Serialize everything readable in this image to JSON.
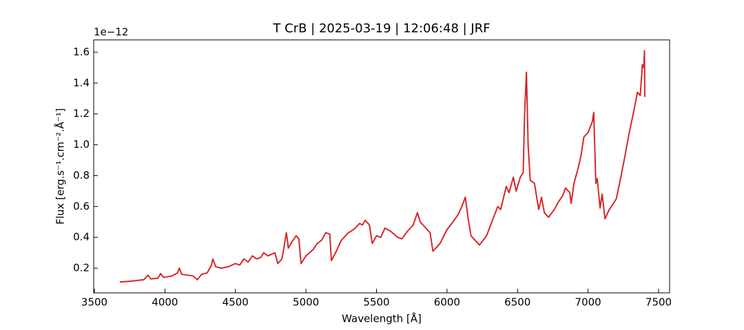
{
  "chart_data": {
    "type": "line",
    "title": "T CrB | 2025-03-19 | 12:06:48 | JRF",
    "x_label": "Wavelength [Å]",
    "y_label": "Flux [erg.s⁻¹.cm⁻².Å⁻¹]",
    "y_offset_label": "1e−12",
    "color": "#d62728",
    "xlim": [
      3495,
      7578
    ],
    "ylim": [
      0.04,
      1.68
    ],
    "xticks": [
      3500,
      4000,
      4500,
      5000,
      5500,
      6000,
      6500,
      7000,
      7500
    ],
    "yticks": [
      0.2,
      0.4,
      0.6,
      0.8,
      {
        "value": 1,
        "label": "1.0"
      },
      1.2,
      1.4,
      1.6
    ],
    "x": [
      3680,
      3750,
      3800,
      3850,
      3880,
      3900,
      3950,
      3970,
      3990,
      4050,
      4090,
      4102,
      4120,
      4200,
      4230,
      4260,
      4300,
      4330,
      4340,
      4360,
      4400,
      4450,
      4500,
      4530,
      4560,
      4590,
      4620,
      4650,
      4680,
      4700,
      4730,
      4780,
      4800,
      4830,
      4861,
      4875,
      4900,
      4930,
      4950,
      4965,
      5000,
      5050,
      5080,
      5110,
      5140,
      5169,
      5180,
      5210,
      5250,
      5270,
      5300,
      5320,
      5350,
      5380,
      5400,
      5420,
      5450,
      5470,
      5500,
      5530,
      5560,
      5600,
      5650,
      5680,
      5720,
      5760,
      5790,
      5810,
      5850,
      5880,
      5900,
      5950,
      6000,
      6050,
      6080,
      6100,
      6130,
      6150,
      6170,
      6200,
      6230,
      6280,
      6330,
      6360,
      6380,
      6420,
      6440,
      6470,
      6490,
      6520,
      6540,
      6550,
      6563,
      6575,
      6590,
      6620,
      6650,
      6670,
      6690,
      6720,
      6760,
      6790,
      6820,
      6840,
      6870,
      6880,
      6900,
      6930,
      6950,
      6970,
      7000,
      7030,
      7040,
      7055,
      7065,
      7085,
      7100,
      7120,
      7150,
      7180,
      7200,
      7230,
      7260,
      7290,
      7320,
      7350,
      7370,
      7385,
      7395,
      7400,
      7402
    ],
    "values": [
      0.11,
      0.115,
      0.12,
      0.125,
      0.155,
      0.13,
      0.135,
      0.165,
      0.14,
      0.15,
      0.17,
      0.2,
      0.16,
      0.15,
      0.125,
      0.16,
      0.17,
      0.22,
      0.26,
      0.21,
      0.2,
      0.21,
      0.23,
      0.22,
      0.26,
      0.24,
      0.28,
      0.26,
      0.27,
      0.3,
      0.28,
      0.3,
      0.23,
      0.26,
      0.43,
      0.33,
      0.37,
      0.41,
      0.39,
      0.23,
      0.28,
      0.32,
      0.36,
      0.38,
      0.43,
      0.42,
      0.25,
      0.3,
      0.38,
      0.4,
      0.43,
      0.44,
      0.46,
      0.49,
      0.48,
      0.51,
      0.48,
      0.36,
      0.41,
      0.4,
      0.46,
      0.44,
      0.4,
      0.39,
      0.44,
      0.48,
      0.56,
      0.5,
      0.46,
      0.43,
      0.31,
      0.36,
      0.45,
      0.51,
      0.55,
      0.59,
      0.66,
      0.52,
      0.41,
      0.38,
      0.35,
      0.41,
      0.53,
      0.6,
      0.58,
      0.73,
      0.69,
      0.79,
      0.7,
      0.79,
      0.82,
      1.2,
      1.47,
      1.0,
      0.77,
      0.75,
      0.58,
      0.66,
      0.56,
      0.53,
      0.58,
      0.63,
      0.67,
      0.72,
      0.69,
      0.62,
      0.75,
      0.85,
      0.93,
      1.05,
      1.08,
      1.15,
      1.21,
      0.75,
      0.78,
      0.59,
      0.68,
      0.52,
      0.58,
      0.62,
      0.65,
      0.78,
      0.92,
      1.07,
      1.2,
      1.34,
      1.32,
      1.52,
      1.5,
      1.61,
      1.31
    ]
  }
}
